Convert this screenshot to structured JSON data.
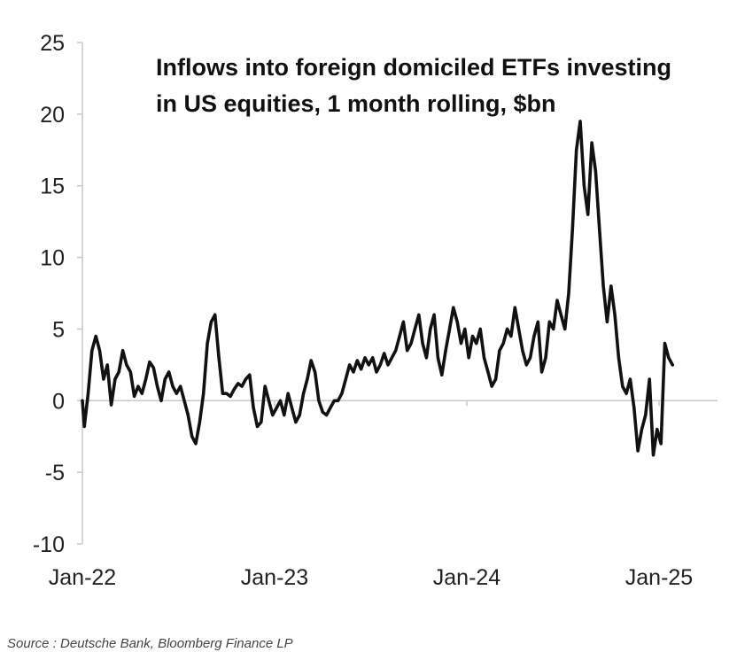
{
  "chart_data": {
    "type": "line",
    "title_lines": [
      "Inflows into foreign domiciled ETFs investing",
      "in US equities,  1 month rolling, $bn"
    ],
    "xlabel": "",
    "ylabel": "",
    "x_tick_labels": [
      "Jan-22",
      "Jan-23",
      "Jan-24",
      "Jan-25"
    ],
    "y_ticks": [
      25,
      20,
      15,
      10,
      5,
      0,
      -5,
      -10
    ],
    "ylim": [
      -10,
      25
    ],
    "xlim_years": [
      2022.0,
      2025.3
    ],
    "grid": false,
    "series_color": "#111111",
    "series": [
      {
        "points": [
          [
            2022.0,
            0.0
          ],
          [
            2022.01,
            -1.8
          ],
          [
            2022.03,
            0.5
          ],
          [
            2022.05,
            3.5
          ],
          [
            2022.07,
            4.5
          ],
          [
            2022.09,
            3.5
          ],
          [
            2022.11,
            1.5
          ],
          [
            2022.13,
            2.5
          ],
          [
            2022.15,
            -0.3
          ],
          [
            2022.17,
            1.5
          ],
          [
            2022.19,
            2.0
          ],
          [
            2022.21,
            3.5
          ],
          [
            2022.23,
            2.5
          ],
          [
            2022.25,
            2.0
          ],
          [
            2022.27,
            0.3
          ],
          [
            2022.29,
            1.0
          ],
          [
            2022.31,
            0.5
          ],
          [
            2022.33,
            1.5
          ],
          [
            2022.35,
            2.7
          ],
          [
            2022.37,
            2.3
          ],
          [
            2022.39,
            1.0
          ],
          [
            2022.41,
            0.0
          ],
          [
            2022.43,
            1.5
          ],
          [
            2022.45,
            2.0
          ],
          [
            2022.47,
            1.0
          ],
          [
            2022.49,
            0.5
          ],
          [
            2022.51,
            1.0
          ],
          [
            2022.53,
            0.0
          ],
          [
            2022.55,
            -1.0
          ],
          [
            2022.57,
            -2.5
          ],
          [
            2022.59,
            -3.0
          ],
          [
            2022.61,
            -1.5
          ],
          [
            2022.63,
            0.5
          ],
          [
            2022.65,
            4.0
          ],
          [
            2022.67,
            5.5
          ],
          [
            2022.69,
            6.0
          ],
          [
            2022.71,
            3.0
          ],
          [
            2022.73,
            0.5
          ],
          [
            2022.75,
            0.5
          ],
          [
            2022.77,
            0.3
          ],
          [
            2022.79,
            0.8
          ],
          [
            2022.81,
            1.2
          ],
          [
            2022.83,
            1.0
          ],
          [
            2022.85,
            1.5
          ],
          [
            2022.87,
            1.8
          ],
          [
            2022.89,
            -0.5
          ],
          [
            2022.91,
            -1.8
          ],
          [
            2022.93,
            -1.5
          ],
          [
            2022.95,
            1.0
          ],
          [
            2022.97,
            0.0
          ],
          [
            2022.99,
            -1.0
          ],
          [
            2023.01,
            -0.5
          ],
          [
            2023.03,
            0.0
          ],
          [
            2023.05,
            -1.0
          ],
          [
            2023.07,
            0.5
          ],
          [
            2023.09,
            -0.5
          ],
          [
            2023.11,
            -1.5
          ],
          [
            2023.13,
            -1.0
          ],
          [
            2023.15,
            0.5
          ],
          [
            2023.17,
            1.5
          ],
          [
            2023.19,
            2.8
          ],
          [
            2023.21,
            2.0
          ],
          [
            2023.23,
            0.0
          ],
          [
            2023.25,
            -0.8
          ],
          [
            2023.27,
            -1.0
          ],
          [
            2023.29,
            -0.5
          ],
          [
            2023.31,
            0.0
          ],
          [
            2023.33,
            0.0
          ],
          [
            2023.35,
            0.5
          ],
          [
            2023.37,
            1.5
          ],
          [
            2023.39,
            2.5
          ],
          [
            2023.41,
            2.0
          ],
          [
            2023.43,
            2.8
          ],
          [
            2023.45,
            2.2
          ],
          [
            2023.47,
            3.0
          ],
          [
            2023.49,
            2.5
          ],
          [
            2023.51,
            3.0
          ],
          [
            2023.53,
            2.0
          ],
          [
            2023.55,
            2.5
          ],
          [
            2023.57,
            3.3
          ],
          [
            2023.59,
            2.5
          ],
          [
            2023.61,
            3.0
          ],
          [
            2023.63,
            3.5
          ],
          [
            2023.65,
            4.5
          ],
          [
            2023.67,
            5.5
          ],
          [
            2023.69,
            3.5
          ],
          [
            2023.71,
            4.0
          ],
          [
            2023.73,
            5.0
          ],
          [
            2023.75,
            6.0
          ],
          [
            2023.77,
            4.0
          ],
          [
            2023.79,
            3.0
          ],
          [
            2023.81,
            5.0
          ],
          [
            2023.83,
            6.0
          ],
          [
            2023.85,
            3.0
          ],
          [
            2023.87,
            1.8
          ],
          [
            2023.89,
            3.5
          ],
          [
            2023.91,
            5.0
          ],
          [
            2023.93,
            6.5
          ],
          [
            2023.95,
            5.5
          ],
          [
            2023.97,
            4.0
          ],
          [
            2023.99,
            5.0
          ],
          [
            2024.01,
            3.0
          ],
          [
            2024.03,
            4.5
          ],
          [
            2024.05,
            4.0
          ],
          [
            2024.07,
            5.0
          ],
          [
            2024.09,
            3.0
          ],
          [
            2024.11,
            2.0
          ],
          [
            2024.13,
            1.0
          ],
          [
            2024.15,
            1.5
          ],
          [
            2024.17,
            3.5
          ],
          [
            2024.19,
            4.0
          ],
          [
            2024.21,
            5.0
          ],
          [
            2024.23,
            4.5
          ],
          [
            2024.25,
            6.5
          ],
          [
            2024.27,
            5.0
          ],
          [
            2024.29,
            3.5
          ],
          [
            2024.31,
            2.5
          ],
          [
            2024.33,
            3.0
          ],
          [
            2024.35,
            4.5
          ],
          [
            2024.37,
            5.5
          ],
          [
            2024.39,
            2.0
          ],
          [
            2024.41,
            3.0
          ],
          [
            2024.43,
            5.5
          ],
          [
            2024.45,
            5.0
          ],
          [
            2024.47,
            7.0
          ],
          [
            2024.49,
            6.0
          ],
          [
            2024.51,
            5.0
          ],
          [
            2024.53,
            7.5
          ],
          [
            2024.55,
            12.0
          ],
          [
            2024.57,
            17.5
          ],
          [
            2024.59,
            19.5
          ],
          [
            2024.61,
            15.0
          ],
          [
            2024.63,
            13.0
          ],
          [
            2024.65,
            18.0
          ],
          [
            2024.67,
            16.0
          ],
          [
            2024.69,
            12.0
          ],
          [
            2024.71,
            8.0
          ],
          [
            2024.73,
            5.5
          ],
          [
            2024.75,
            8.0
          ],
          [
            2024.77,
            6.0
          ],
          [
            2024.79,
            3.0
          ],
          [
            2024.81,
            1.0
          ],
          [
            2024.83,
            0.5
          ],
          [
            2024.85,
            1.5
          ],
          [
            2024.87,
            -0.5
          ],
          [
            2024.89,
            -3.5
          ],
          [
            2024.91,
            -2.0
          ],
          [
            2024.93,
            -1.0
          ],
          [
            2024.95,
            1.5
          ],
          [
            2024.97,
            -3.8
          ],
          [
            2024.99,
            -2.0
          ],
          [
            2025.01,
            -3.0
          ],
          [
            2025.03,
            4.0
          ],
          [
            2025.05,
            3.0
          ],
          [
            2025.07,
            2.5
          ]
        ]
      }
    ]
  },
  "source_text": "Source : Deutsche Bank, Bloomberg Finance LP"
}
